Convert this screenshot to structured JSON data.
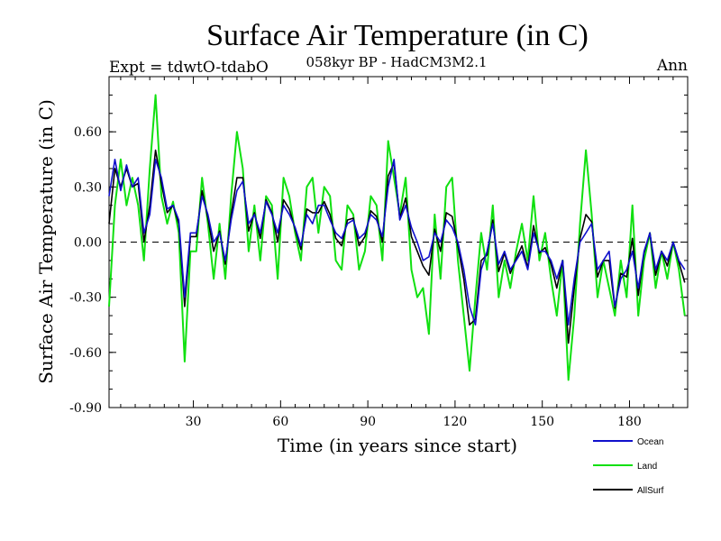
{
  "chart_data": {
    "type": "line",
    "title": "Surface Air Temperature (in C)",
    "left_label": "Expt = tdwtO-tdabO",
    "subtitle": "058kyr BP - HadCM3M2.1",
    "right_label": "Ann",
    "xlabel": "Time (in years since start)",
    "ylabel": "Surface Air Temperature (in C)",
    "xlim": [
      1,
      200
    ],
    "ylim": [
      -0.9,
      0.9
    ],
    "xticks": [
      30,
      60,
      90,
      120,
      150,
      180
    ],
    "yticks": [
      -0.9,
      -0.6,
      -0.3,
      0.0,
      0.3,
      0.6
    ],
    "ytick_labels": [
      "-0.90",
      "-0.60",
      "-0.30",
      "0.00",
      "0.30",
      "0.60"
    ],
    "zero_line": "dashed",
    "grid": false,
    "legend_position": "bottom-right",
    "x": [
      1,
      3,
      5,
      7,
      9,
      11,
      13,
      15,
      17,
      19,
      21,
      23,
      25,
      27,
      29,
      31,
      33,
      35,
      37,
      39,
      41,
      43,
      45,
      47,
      49,
      51,
      53,
      55,
      57,
      59,
      61,
      63,
      65,
      67,
      69,
      71,
      73,
      75,
      77,
      79,
      81,
      83,
      85,
      87,
      89,
      91,
      93,
      95,
      97,
      99,
      101,
      103,
      105,
      107,
      109,
      111,
      113,
      115,
      117,
      119,
      121,
      123,
      125,
      127,
      129,
      131,
      133,
      135,
      137,
      139,
      141,
      143,
      145,
      147,
      149,
      151,
      153,
      155,
      157,
      159,
      161,
      163,
      165,
      167,
      169,
      171,
      173,
      175,
      177,
      179,
      181,
      183,
      185,
      187,
      189,
      191,
      193,
      195,
      197,
      199
    ],
    "series": [
      {
        "name": "Ocean",
        "color": "#1010cc",
        "values": [
          0.25,
          0.45,
          0.28,
          0.42,
          0.3,
          0.35,
          0.05,
          0.15,
          0.45,
          0.35,
          0.18,
          0.2,
          0.12,
          -0.3,
          0.05,
          0.05,
          0.25,
          0.15,
          0.0,
          0.05,
          -0.1,
          0.12,
          0.28,
          0.33,
          0.1,
          0.15,
          0.05,
          0.22,
          0.15,
          0.05,
          0.2,
          0.15,
          0.08,
          -0.02,
          0.15,
          0.1,
          0.2,
          0.2,
          0.12,
          0.05,
          0.02,
          0.1,
          0.12,
          0.02,
          0.05,
          0.15,
          0.12,
          0.03,
          0.3,
          0.45,
          0.12,
          0.2,
          0.08,
          0.0,
          -0.1,
          -0.08,
          0.05,
          0.0,
          0.12,
          0.08,
          0.0,
          -0.15,
          -0.35,
          -0.45,
          -0.15,
          -0.05,
          0.1,
          -0.12,
          -0.05,
          -0.15,
          -0.1,
          -0.05,
          -0.15,
          0.05,
          -0.05,
          -0.05,
          -0.1,
          -0.2,
          -0.1,
          -0.45,
          -0.2,
          0.0,
          0.05,
          0.1,
          -0.15,
          -0.1,
          -0.05,
          -0.35,
          -0.2,
          -0.15,
          -0.05,
          -0.25,
          -0.05,
          0.05,
          -0.15,
          -0.05,
          -0.1,
          0.0,
          -0.1,
          -0.15
        ]
      },
      {
        "name": "Land",
        "color": "#10e010",
        "values": [
          -0.35,
          0.2,
          0.45,
          0.2,
          0.35,
          0.2,
          -0.1,
          0.4,
          0.8,
          0.25,
          0.1,
          0.22,
          0.05,
          -0.65,
          -0.05,
          -0.05,
          0.35,
          0.1,
          -0.2,
          0.1,
          -0.2,
          0.25,
          0.6,
          0.4,
          -0.05,
          0.2,
          -0.1,
          0.25,
          0.2,
          -0.2,
          0.35,
          0.25,
          0.05,
          -0.1,
          0.3,
          0.35,
          0.05,
          0.3,
          0.25,
          -0.1,
          -0.15,
          0.2,
          0.15,
          -0.15,
          -0.05,
          0.25,
          0.2,
          -0.1,
          0.55,
          0.35,
          0.15,
          0.35,
          -0.15,
          -0.3,
          -0.25,
          -0.5,
          0.15,
          -0.2,
          0.3,
          0.35,
          -0.1,
          -0.4,
          -0.7,
          -0.3,
          0.05,
          -0.15,
          0.2,
          -0.3,
          -0.1,
          -0.25,
          -0.05,
          0.1,
          -0.1,
          0.25,
          -0.1,
          0.05,
          -0.2,
          -0.4,
          -0.1,
          -0.75,
          -0.4,
          0.1,
          0.5,
          0.15,
          -0.3,
          -0.1,
          -0.25,
          -0.4,
          -0.1,
          -0.3,
          0.2,
          -0.4,
          -0.1,
          0.05,
          -0.25,
          -0.05,
          -0.2,
          0.0,
          -0.15,
          -0.4
        ]
      },
      {
        "name": "AllSurf",
        "color": "#000000",
        "values": [
          0.1,
          0.4,
          0.3,
          0.4,
          0.3,
          0.32,
          0.0,
          0.2,
          0.5,
          0.32,
          0.16,
          0.2,
          0.1,
          -0.35,
          0.03,
          0.03,
          0.28,
          0.13,
          -0.05,
          0.06,
          -0.12,
          0.15,
          0.35,
          0.35,
          0.06,
          0.16,
          0.02,
          0.23,
          0.16,
          0.0,
          0.23,
          0.18,
          0.07,
          -0.04,
          0.18,
          0.16,
          0.16,
          0.22,
          0.15,
          0.02,
          -0.02,
          0.12,
          0.13,
          -0.02,
          0.03,
          0.17,
          0.14,
          0.0,
          0.36,
          0.43,
          0.13,
          0.24,
          0.03,
          -0.05,
          -0.13,
          -0.18,
          0.07,
          -0.05,
          0.16,
          0.14,
          -0.02,
          -0.2,
          -0.45,
          -0.42,
          -0.1,
          -0.07,
          0.12,
          -0.16,
          -0.06,
          -0.17,
          -0.09,
          -0.02,
          -0.14,
          0.09,
          -0.06,
          -0.03,
          -0.12,
          -0.25,
          -0.1,
          -0.55,
          -0.25,
          0.02,
          0.15,
          0.11,
          -0.19,
          -0.1,
          -0.1,
          -0.36,
          -0.17,
          -0.19,
          0.02,
          -0.29,
          -0.06,
          0.05,
          -0.18,
          -0.05,
          -0.13,
          0.0,
          -0.11,
          -0.22
        ]
      }
    ]
  }
}
